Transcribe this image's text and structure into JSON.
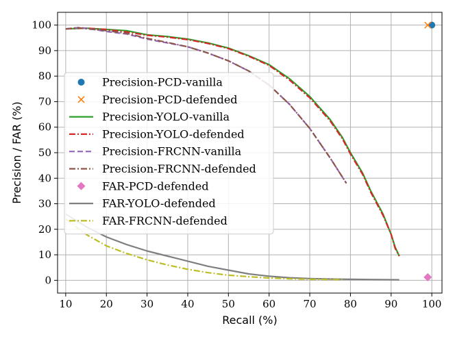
{
  "chart_data": {
    "type": "line",
    "title": "",
    "xlabel": "Recall (%)",
    "ylabel": "Precision / FAR (%)",
    "xlim": [
      8,
      102.5
    ],
    "ylim": [
      -5,
      105
    ],
    "xticks": [
      10,
      20,
      30,
      40,
      50,
      60,
      70,
      80,
      90,
      100
    ],
    "yticks": [
      0,
      10,
      20,
      30,
      40,
      50,
      60,
      70,
      80,
      90,
      100
    ],
    "grid": true,
    "legend_position": "center-left",
    "series": [
      {
        "name": "Precision-PCD-vanilla",
        "kind": "marker",
        "marker": "circle",
        "color": "#1f77b4",
        "x": [
          100
        ],
        "y": [
          100
        ]
      },
      {
        "name": "Precision-PCD-defended",
        "kind": "marker",
        "marker": "x",
        "color": "#ff7f0e",
        "x": [
          99
        ],
        "y": [
          100
        ]
      },
      {
        "name": "Precision-YOLO-vanilla",
        "kind": "line",
        "dash": "solid",
        "color": "#2ca02c",
        "x": [
          10,
          15,
          20,
          25,
          30,
          35,
          40,
          45,
          50,
          55,
          60,
          65,
          70,
          75,
          78,
          80,
          83,
          85,
          88,
          90,
          91,
          92
        ],
        "y": [
          98.5,
          98.8,
          98.3,
          97.8,
          96.2,
          95.5,
          94.5,
          93,
          91,
          88,
          84.5,
          79,
          72,
          63,
          56,
          50,
          42,
          35,
          26,
          18,
          13,
          9.5
        ]
      },
      {
        "name": "Precision-YOLO-defended",
        "kind": "line",
        "dash": "dashdot",
        "color": "#d62728",
        "x": [
          10,
          15,
          20,
          25,
          30,
          35,
          40,
          45,
          50,
          55,
          60,
          65,
          70,
          75,
          78,
          80,
          83,
          85,
          88,
          90,
          91,
          92
        ],
        "y": [
          98.5,
          98.8,
          98.3,
          97.3,
          96,
          95.3,
          94.3,
          92.8,
          90.8,
          87.8,
          84.2,
          78.5,
          71.5,
          62.5,
          55.5,
          49.5,
          41.5,
          34.5,
          25.5,
          18,
          12.5,
          9.5
        ]
      },
      {
        "name": "Precision-FRCNN-vanilla",
        "kind": "line",
        "dash": "dashed",
        "color": "#9467bd",
        "x": [
          10,
          13,
          15,
          20,
          25,
          30,
          35,
          40,
          45,
          50,
          55,
          60,
          65,
          70,
          75,
          79
        ],
        "y": [
          98.5,
          99,
          98.8,
          97.5,
          96.5,
          94.5,
          93,
          91.5,
          89,
          86,
          82,
          76.5,
          69,
          59.5,
          48,
          38
        ]
      },
      {
        "name": "Precision-FRCNN-defended",
        "kind": "line",
        "dash": "dashdot",
        "color": "#8c564b",
        "x": [
          10,
          13,
          15,
          20,
          25,
          30,
          35,
          40,
          45,
          50,
          55,
          60,
          65,
          70,
          75,
          79
        ],
        "y": [
          98.5,
          99,
          98.6,
          97.8,
          96.8,
          94.8,
          93.2,
          91.5,
          89,
          86,
          82,
          76.5,
          69,
          59.5,
          48,
          38
        ]
      },
      {
        "name": "FAR-PCD-defended",
        "kind": "marker",
        "marker": "diamond",
        "color": "#e377c2",
        "x": [
          99
        ],
        "y": [
          1.2
        ]
      },
      {
        "name": "FAR-YOLO-defended",
        "kind": "line",
        "dash": "solid",
        "color": "#7f7f7f",
        "x": [
          10,
          15,
          20,
          25,
          30,
          35,
          40,
          45,
          50,
          55,
          60,
          65,
          70,
          75,
          80,
          85,
          92
        ],
        "y": [
          26,
          21,
          17,
          14,
          11.5,
          9.5,
          7.5,
          5.5,
          4,
          2.5,
          1.6,
          1,
          0.7,
          0.5,
          0.4,
          0.3,
          0.2
        ]
      },
      {
        "name": "FAR-FRCNN-defended",
        "kind": "line",
        "dash": "dashdot",
        "color": "#bcbd22",
        "x": [
          10,
          15,
          20,
          25,
          30,
          35,
          40,
          45,
          50,
          55,
          60,
          65,
          70,
          75,
          78
        ],
        "y": [
          24,
          18,
          13.5,
          10.5,
          8,
          6,
          4.3,
          3,
          2,
          1.4,
          0.9,
          0.6,
          0.4,
          0.3,
          0.3
        ]
      }
    ]
  }
}
